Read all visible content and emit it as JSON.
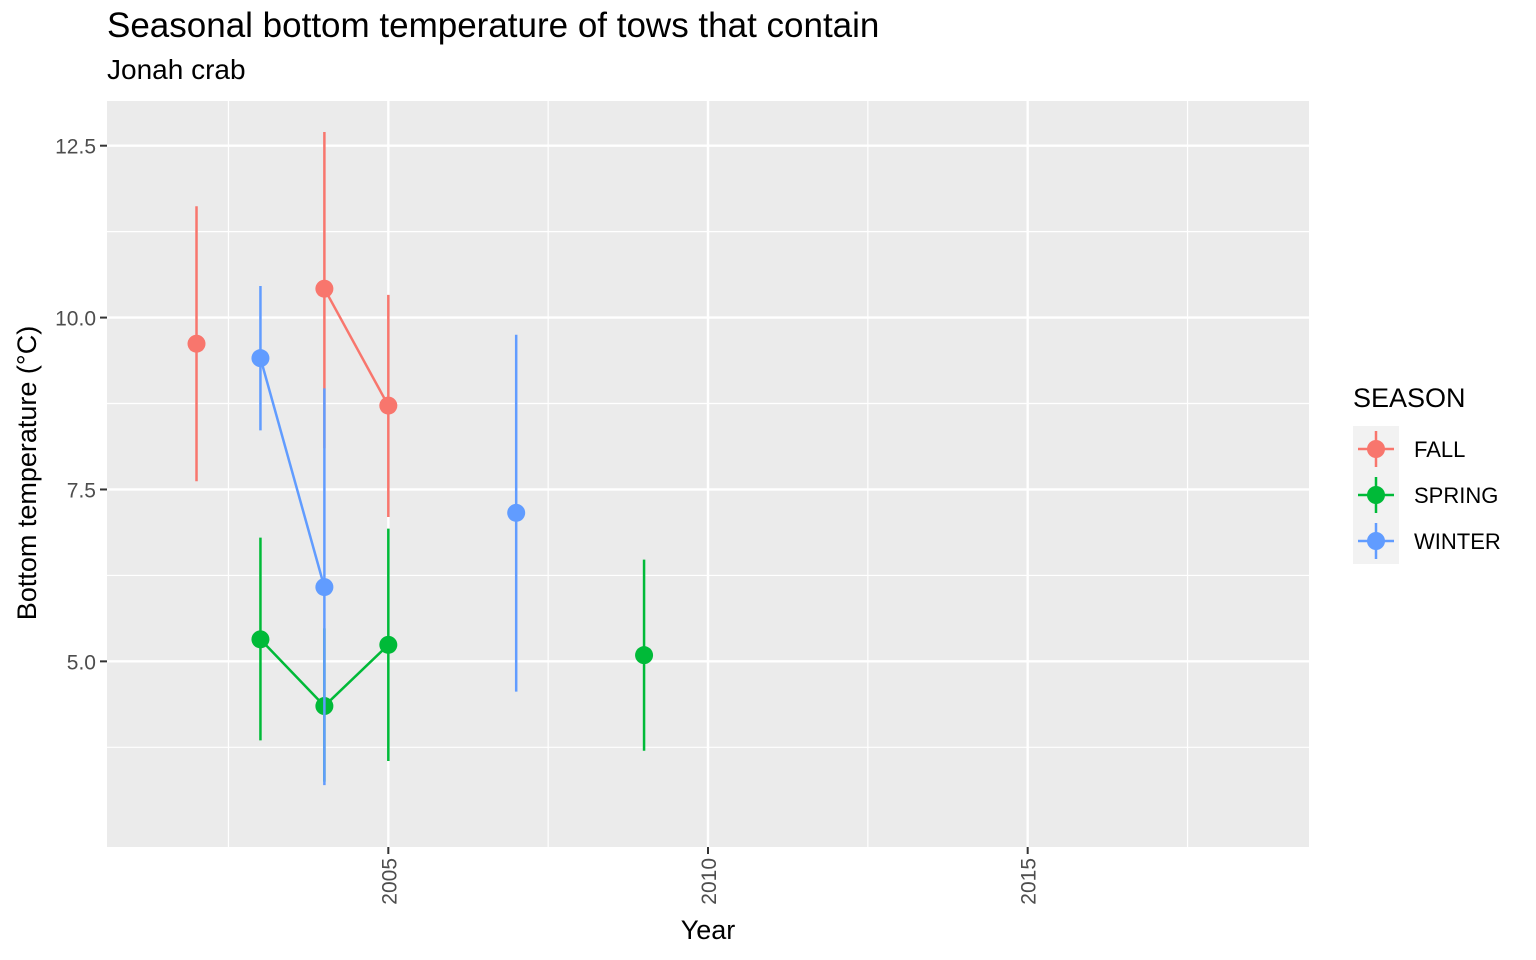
{
  "chart_data": {
    "type": "scatter",
    "title": "Seasonal bottom temperature of tows that contain",
    "subtitle": "Jonah crab",
    "xlabel": "Year",
    "ylabel": "Bottom temperature (°C)",
    "xlim": [
      2000.6,
      2019.4
    ],
    "ylim": [
      2.3,
      13.15
    ],
    "x_ticks": [
      2005,
      2010,
      2015
    ],
    "x_tick_labels": [
      "2005",
      "2010",
      "2015"
    ],
    "y_ticks": [
      5.0,
      7.5,
      10.0,
      12.5
    ],
    "y_tick_labels": [
      "5.0",
      "7.5",
      "10.0",
      "12.5"
    ],
    "grid": true,
    "legend": {
      "title": "SEASON",
      "position": "right"
    },
    "series": [
      {
        "name": "FALL",
        "color": "#F8766D",
        "points": [
          {
            "x": 2002,
            "y": 9.62,
            "ymin": 7.62,
            "ymax": 11.62
          },
          {
            "x": 2004,
            "y": 10.42,
            "ymin": 8.1,
            "ymax": 12.7
          },
          {
            "x": 2005,
            "y": 8.72,
            "ymin": 7.1,
            "ymax": 10.33
          }
        ],
        "line_segments": [
          [
            2004,
            2005
          ]
        ]
      },
      {
        "name": "SPRING",
        "color": "#00BA38",
        "points": [
          {
            "x": 2003,
            "y": 5.32,
            "ymin": 3.85,
            "ymax": 6.8
          },
          {
            "x": 2004,
            "y": 4.35,
            "ymin": 3.25,
            "ymax": 5.48
          },
          {
            "x": 2005,
            "y": 5.24,
            "ymin": 3.55,
            "ymax": 6.93
          },
          {
            "x": 2009,
            "y": 5.09,
            "ymin": 3.7,
            "ymax": 6.48
          }
        ],
        "line_segments": [
          [
            2003,
            2004
          ],
          [
            2004,
            2005
          ]
        ]
      },
      {
        "name": "WINTER",
        "color": "#619CFF",
        "points": [
          {
            "x": 2003,
            "y": 9.41,
            "ymin": 8.36,
            "ymax": 10.46
          },
          {
            "x": 2004,
            "y": 6.08,
            "ymin": 3.2,
            "ymax": 8.97
          },
          {
            "x": 2007,
            "y": 7.16,
            "ymin": 4.56,
            "ymax": 9.75
          }
        ],
        "line_segments": [
          [
            2003,
            2004
          ]
        ]
      }
    ]
  }
}
